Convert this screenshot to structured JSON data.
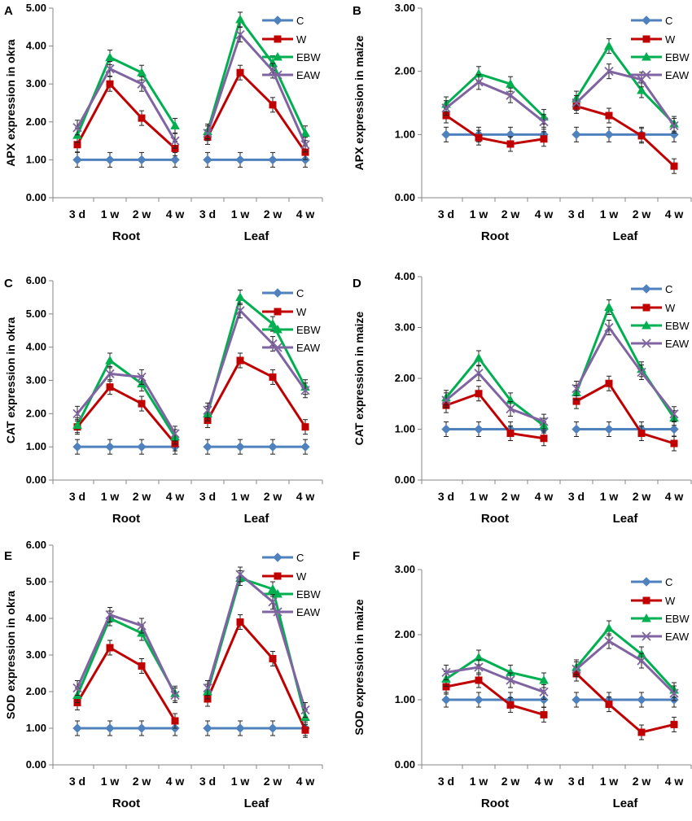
{
  "figure": {
    "title": ""
  },
  "chart_data": [
    {
      "panel": "A",
      "type": "line",
      "ylabel": "APX expression in okra",
      "ylim": [
        0,
        5
      ],
      "yticks": [
        "0.00",
        "1.00",
        "2.00",
        "3.00",
        "4.00",
        "5.00"
      ],
      "groups": [
        "Root",
        "Leaf"
      ],
      "categories": [
        "3 d",
        "1 w",
        "2 w",
        "4 w"
      ],
      "series": [
        {
          "name": "C",
          "color": "#4f81bd",
          "marker": "diamond",
          "groups": [
            [
              1.0,
              1.0,
              1.0,
              1.0
            ],
            [
              1.0,
              1.0,
              1.0,
              1.0
            ]
          ]
        },
        {
          "name": "W",
          "color": "#c00000",
          "marker": "square",
          "groups": [
            [
              1.4,
              3.0,
              2.1,
              1.3
            ],
            [
              1.6,
              3.3,
              2.45,
              1.2
            ]
          ]
        },
        {
          "name": "EBW",
          "color": "#00b050",
          "marker": "triangle",
          "groups": [
            [
              1.65,
              3.7,
              3.3,
              1.9
            ],
            [
              1.75,
              4.7,
              3.55,
              1.7
            ]
          ]
        },
        {
          "name": "EAW",
          "color": "#8064a2",
          "marker": "x",
          "groups": [
            [
              1.85,
              3.4,
              3.0,
              1.5
            ],
            [
              1.7,
              4.3,
              3.35,
              1.4
            ]
          ]
        }
      ]
    },
    {
      "panel": "B",
      "type": "line",
      "ylabel": "APX expression in maize",
      "ylim": [
        0,
        3
      ],
      "yticks": [
        "0.00",
        "1.00",
        "2.00",
        "3.00"
      ],
      "groups": [
        "Root",
        "Leaf"
      ],
      "categories": [
        "3 d",
        "1 w",
        "2 w",
        "4 w"
      ],
      "series": [
        {
          "name": "C",
          "color": "#4f81bd",
          "marker": "diamond",
          "groups": [
            [
              1.0,
              1.0,
              1.0,
              1.0
            ],
            [
              1.0,
              1.0,
              1.0,
              1.0
            ]
          ]
        },
        {
          "name": "W",
          "color": "#c00000",
          "marker": "square",
          "groups": [
            [
              1.3,
              0.95,
              0.85,
              0.93
            ],
            [
              1.45,
              1.3,
              0.98,
              0.5
            ]
          ]
        },
        {
          "name": "EBW",
          "color": "#00b050",
          "marker": "triangle",
          "groups": [
            [
              1.48,
              1.96,
              1.8,
              1.28
            ],
            [
              1.57,
              2.4,
              1.7,
              1.17
            ]
          ]
        },
        {
          "name": "EAW",
          "color": "#8064a2",
          "marker": "x",
          "groups": [
            [
              1.42,
              1.83,
              1.62,
              1.2
            ],
            [
              1.5,
              2.0,
              1.87,
              1.14
            ]
          ]
        }
      ]
    },
    {
      "panel": "C",
      "type": "line",
      "ylabel": "CAT expression in okra",
      "ylim": [
        0,
        6
      ],
      "yticks": [
        "0.00",
        "1.00",
        "2.00",
        "3.00",
        "4.00",
        "5.00",
        "6.00"
      ],
      "groups": [
        "Root",
        "Leaf"
      ],
      "categories": [
        "3 d",
        "1 w",
        "2 w",
        "4 w"
      ],
      "series": [
        {
          "name": "C",
          "color": "#4f81bd",
          "marker": "diamond",
          "groups": [
            [
              1.0,
              1.0,
              1.0,
              1.0
            ],
            [
              1.0,
              1.0,
              1.0,
              1.0
            ]
          ]
        },
        {
          "name": "W",
          "color": "#c00000",
          "marker": "square",
          "groups": [
            [
              1.6,
              2.8,
              2.3,
              1.1
            ],
            [
              1.8,
              3.6,
              3.1,
              1.6
            ]
          ]
        },
        {
          "name": "EBW",
          "color": "#00b050",
          "marker": "triangle",
          "groups": [
            [
              1.65,
              3.6,
              2.9,
              1.3
            ],
            [
              2.0,
              5.5,
              4.7,
              2.8
            ]
          ]
        },
        {
          "name": "EAW",
          "color": "#8064a2",
          "marker": "x",
          "groups": [
            [
              2.0,
              3.2,
              3.1,
              1.4
            ],
            [
              2.1,
              5.1,
              4.1,
              2.7
            ]
          ]
        }
      ]
    },
    {
      "panel": "D",
      "type": "line",
      "ylabel": "CAT expression in maize",
      "ylim": [
        0,
        4
      ],
      "yticks": [
        "0.00",
        "1.00",
        "2.00",
        "3.00",
        "4.00"
      ],
      "groups": [
        "Root",
        "Leaf"
      ],
      "categories": [
        "3 d",
        "1 w",
        "2 w",
        "4 w"
      ],
      "series": [
        {
          "name": "C",
          "color": "#4f81bd",
          "marker": "diamond",
          "groups": [
            [
              1.0,
              1.0,
              1.0,
              1.0
            ],
            [
              1.0,
              1.0,
              1.0,
              1.0
            ]
          ]
        },
        {
          "name": "W",
          "color": "#c00000",
          "marker": "square",
          "groups": [
            [
              1.47,
              1.7,
              0.92,
              0.82
            ],
            [
              1.55,
              1.9,
              0.92,
              0.72
            ]
          ]
        },
        {
          "name": "EBW",
          "color": "#00b050",
          "marker": "triangle",
          "groups": [
            [
              1.62,
              2.4,
              1.57,
              1.07
            ],
            [
              1.72,
              3.4,
              2.18,
              1.22
            ]
          ]
        },
        {
          "name": "EAW",
          "color": "#8064a2",
          "marker": "x",
          "groups": [
            [
              1.57,
              2.1,
              1.4,
              1.15
            ],
            [
              1.8,
              3.0,
              2.12,
              1.3
            ]
          ]
        }
      ]
    },
    {
      "panel": "E",
      "type": "line",
      "ylabel": "SOD expression in okra",
      "ylim": [
        0,
        6
      ],
      "yticks": [
        "0.00",
        "1.00",
        "2.00",
        "3.00",
        "4.00",
        "5.00",
        "6.00"
      ],
      "groups": [
        "Root",
        "Leaf"
      ],
      "categories": [
        "3 d",
        "1 w",
        "2 w",
        "4 w"
      ],
      "series": [
        {
          "name": "C",
          "color": "#4f81bd",
          "marker": "diamond",
          "groups": [
            [
              1.0,
              1.0,
              1.0,
              1.0
            ],
            [
              1.0,
              1.0,
              1.0,
              1.0
            ]
          ]
        },
        {
          "name": "W",
          "color": "#c00000",
          "marker": "square",
          "groups": [
            [
              1.7,
              3.2,
              2.7,
              1.2
            ],
            [
              1.8,
              3.9,
              2.9,
              0.95
            ]
          ]
        },
        {
          "name": "EBW",
          "color": "#00b050",
          "marker": "triangle",
          "groups": [
            [
              1.9,
              4.0,
              3.6,
              1.95
            ],
            [
              2.0,
              5.1,
              4.8,
              1.3
            ]
          ]
        },
        {
          "name": "EAW",
          "color": "#8064a2",
          "marker": "x",
          "groups": [
            [
              2.1,
              4.1,
              3.8,
              1.9
            ],
            [
              2.1,
              5.2,
              4.45,
              1.5
            ]
          ]
        }
      ]
    },
    {
      "panel": "F",
      "type": "line",
      "ylabel": "SOD expression in maize",
      "ylim": [
        0,
        3
      ],
      "yticks": [
        "0.00",
        "1.00",
        "2.00",
        "3.00"
      ],
      "groups": [
        "Root",
        "Leaf"
      ],
      "categories": [
        "3 d",
        "1 w",
        "2 w",
        "4 w"
      ],
      "series": [
        {
          "name": "C",
          "color": "#4f81bd",
          "marker": "diamond",
          "groups": [
            [
              1.0,
              1.0,
              1.0,
              1.0
            ],
            [
              1.0,
              1.0,
              1.0,
              1.0
            ]
          ]
        },
        {
          "name": "W",
          "color": "#c00000",
          "marker": "square",
          "groups": [
            [
              1.2,
              1.3,
              0.92,
              0.77
            ],
            [
              1.4,
              0.93,
              0.5,
              0.62
            ]
          ]
        },
        {
          "name": "EBW",
          "color": "#00b050",
          "marker": "triangle",
          "groups": [
            [
              1.32,
              1.65,
              1.42,
              1.3
            ],
            [
              1.5,
              2.1,
              1.7,
              1.15
            ]
          ]
        },
        {
          "name": "EAW",
          "color": "#8064a2",
          "marker": "x",
          "groups": [
            [
              1.42,
              1.5,
              1.3,
              1.12
            ],
            [
              1.47,
              1.9,
              1.6,
              1.1
            ]
          ]
        }
      ]
    }
  ]
}
